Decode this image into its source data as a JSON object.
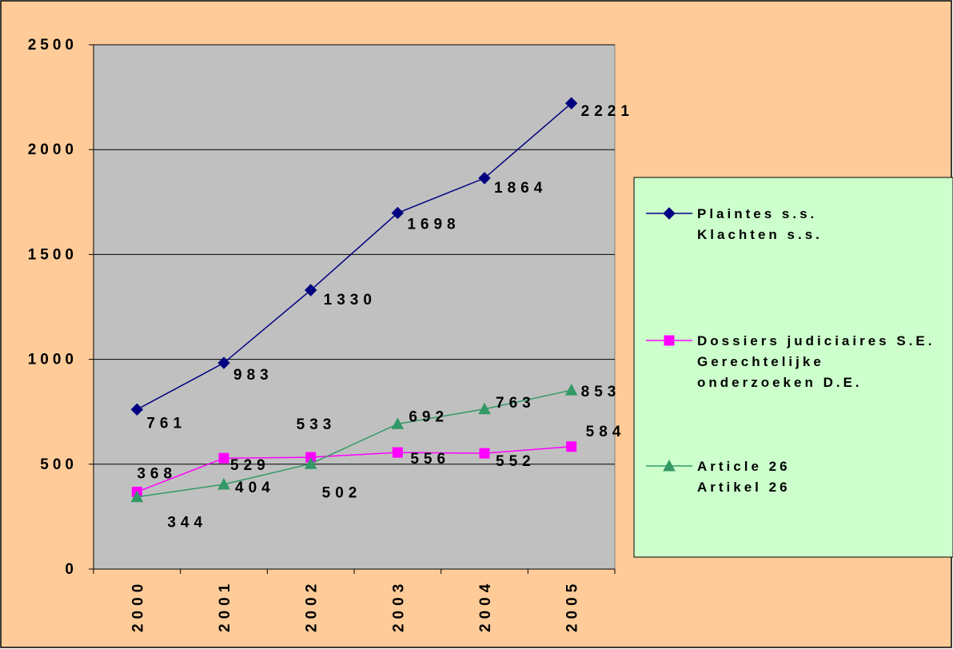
{
  "colors": {
    "chart_background": "#FFCC99",
    "plot_background": "#C0C0C0",
    "legend_background": "#CCFFCC",
    "gridline": "#000000"
  },
  "chart_data": {
    "type": "line",
    "categories": [
      "2000",
      "2001",
      "2002",
      "2003",
      "2004",
      "2005"
    ],
    "ylim": [
      0,
      2500
    ],
    "yticks": [
      0,
      500,
      1000,
      1500,
      2000,
      2500
    ],
    "grid": true,
    "legend_position": "right",
    "series": [
      {
        "name": "Plaintes s.s.",
        "name_line2": "Klachten s.s.",
        "color": "#000080",
        "marker": "diamond",
        "values": [
          761,
          983,
          1330,
          1698,
          1864,
          2221
        ]
      },
      {
        "name": "Dossiers judiciaires S.E.",
        "name_line2": "Gerechtelijke",
        "name_line3": "onderzoeken D.E.",
        "color": "#FF00FF",
        "marker": "square",
        "values": [
          368,
          529,
          533,
          556,
          552,
          584
        ]
      },
      {
        "name": "Article 26",
        "name_line2": "Artikel 26",
        "color": "#339966",
        "marker": "triangle",
        "values": [
          344,
          404,
          502,
          692,
          763,
          853
        ]
      }
    ]
  }
}
